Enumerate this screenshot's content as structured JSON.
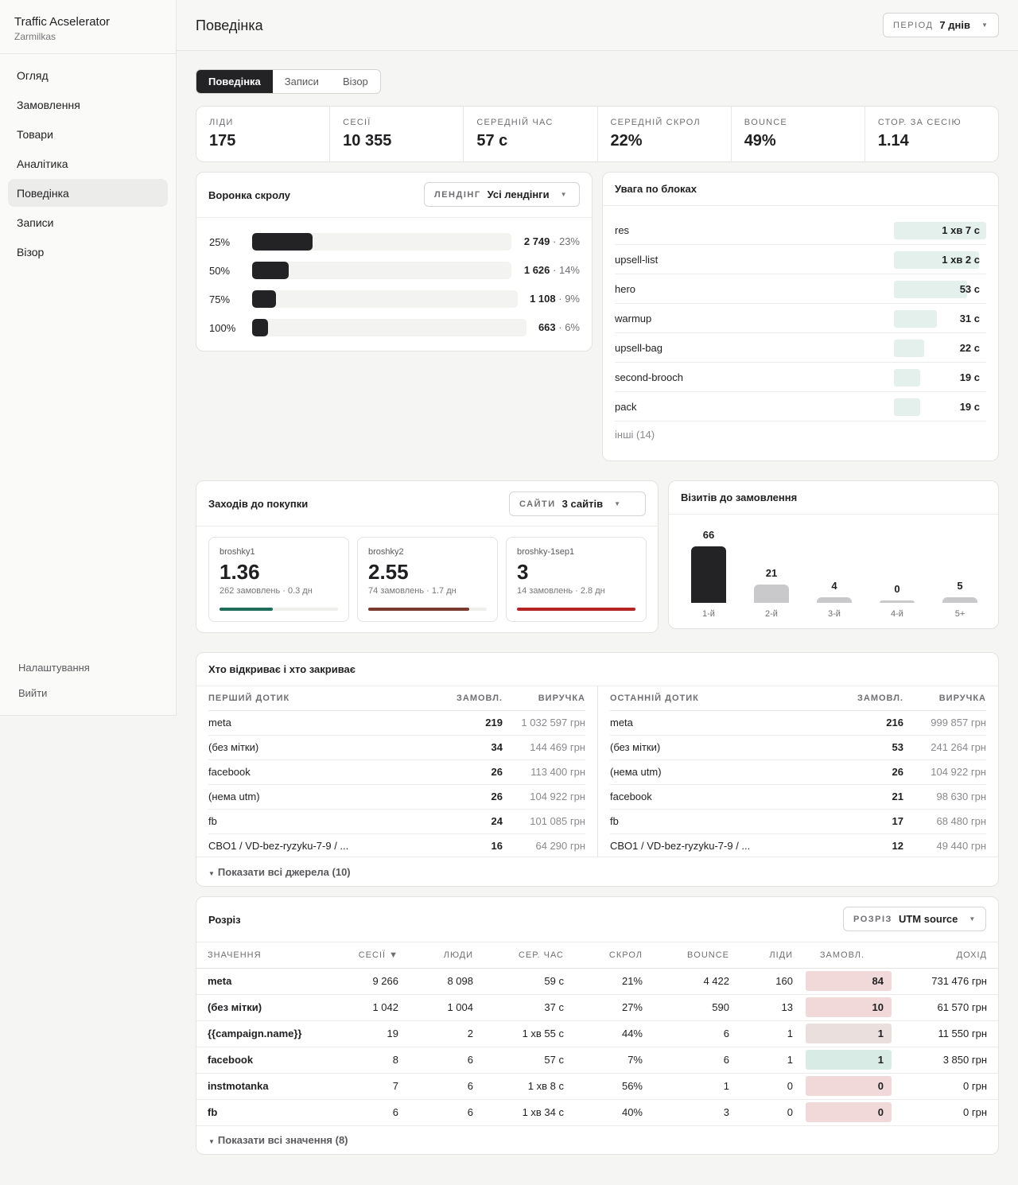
{
  "app": {
    "title": "Traffic Acselerator",
    "subtitle": "Zarmilkas"
  },
  "nav": {
    "items": [
      "Огляд",
      "Замовлення",
      "Товари",
      "Аналітика",
      "Поведінка",
      "Записи",
      "Візор"
    ],
    "active": 4
  },
  "bottom_nav": {
    "settings": "Налаштування",
    "logout": "Вийти"
  },
  "header": {
    "title": "Поведінка",
    "period_label": "Період",
    "period_value": "7 днів"
  },
  "tabs": [
    "Поведінка",
    "Записи",
    "Візор"
  ],
  "kpis": [
    {
      "label": "Ліди",
      "value": "175"
    },
    {
      "label": "Сесії",
      "value": "10 355"
    },
    {
      "label": "Середній час",
      "value": "57 с"
    },
    {
      "label": "Середній скрол",
      "value": "22%"
    },
    {
      "label": "Bounce",
      "value": "49%"
    },
    {
      "label": "Стор. за сесію",
      "value": "1.14"
    }
  ],
  "scroll_funnel": {
    "title": "Воронка скролу",
    "selector_label": "Лендінг",
    "selector_value": "Усі лендінги",
    "rows": [
      {
        "pct": "25%",
        "count": "2 749",
        "share": "· 23%",
        "fill": 0.23
      },
      {
        "pct": "50%",
        "count": "1 626",
        "share": "· 14%",
        "fill": 0.14
      },
      {
        "pct": "75%",
        "count": "1 108",
        "share": "· 9%",
        "fill": 0.09
      },
      {
        "pct": "100%",
        "count": "663",
        "share": "· 6%",
        "fill": 0.06
      }
    ]
  },
  "attention": {
    "title": "Увага по блоках",
    "rows": [
      {
        "name": "res",
        "value": "1 хв 7 с",
        "seconds": 67
      },
      {
        "name": "upsell-list",
        "value": "1 хв 2 с",
        "seconds": 62
      },
      {
        "name": "hero",
        "value": "53 с",
        "seconds": 53
      },
      {
        "name": "warmup",
        "value": "31 с",
        "seconds": 31
      },
      {
        "name": "upsell-bag",
        "value": "22 с",
        "seconds": 22
      },
      {
        "name": "second-brooch",
        "value": "19 с",
        "seconds": 19
      },
      {
        "name": "pack",
        "value": "19 с",
        "seconds": 19
      }
    ],
    "more": "інші (14)"
  },
  "visits_to_purchase": {
    "title": "Заходів до покупки",
    "selector_label": "Сайти",
    "selector_value": "3 сайтів",
    "sites": [
      {
        "name": "broshky1",
        "value": "1.36",
        "sub": "262 замовлень · 0.3 дн",
        "color": "#1f6b5c",
        "fill": 0.45
      },
      {
        "name": "broshky2",
        "value": "2.55",
        "sub": "74 замовлень · 1.7 дн",
        "color": "#7a3a2e",
        "fill": 0.85
      },
      {
        "name": "broshky-1sep1",
        "value": "3",
        "sub": "14 замовлень · 2.8 дн",
        "color": "#b42424",
        "fill": 1.0
      }
    ]
  },
  "chart_data": {
    "type": "bar",
    "title": "Візитів до замовлення",
    "categories": [
      "1-й",
      "2-й",
      "3-й",
      "4-й",
      "5+"
    ],
    "values": [
      66,
      21,
      4,
      0,
      5
    ],
    "colors": [
      "#232325",
      "#c9c9cb",
      "#c9c9cb",
      "#c9c9cb",
      "#c9c9cb"
    ]
  },
  "touch": {
    "title": "Хто відкриває і хто закриває",
    "first": {
      "headers": [
        "Перший дотик",
        "Замовл.",
        "Виручка"
      ],
      "rows": [
        [
          "meta",
          "219",
          "1 032 597 грн"
        ],
        [
          "(без мітки)",
          "34",
          "144 469 грн"
        ],
        [
          "facebook",
          "26",
          "113 400 грн"
        ],
        [
          "(нема utm)",
          "26",
          "104 922 грн"
        ],
        [
          "fb",
          "24",
          "101 085 грн"
        ],
        [
          "CBO1 / VD-bez-ryzyku-7-9 / ...",
          "16",
          "64 290 грн"
        ]
      ]
    },
    "last": {
      "headers": [
        "Останній дотик",
        "Замовл.",
        "Виручка"
      ],
      "rows": [
        [
          "meta",
          "216",
          "999 857 грн"
        ],
        [
          "(без мітки)",
          "53",
          "241 264 грн"
        ],
        [
          "(нема utm)",
          "26",
          "104 922 грн"
        ],
        [
          "facebook",
          "21",
          "98 630 грн"
        ],
        [
          "fb",
          "17",
          "68 480 грн"
        ],
        [
          "CBO1 / VD-bez-ryzyku-7-9 / ...",
          "12",
          "49 440 грн"
        ]
      ]
    },
    "more": "Показати всі джерела (10)"
  },
  "breakdown": {
    "title": "Розріз",
    "selector_label": "Розріз",
    "selector_value": "UTM source",
    "headers": [
      "Значення",
      "Сесії ▼",
      "Люди",
      "Сер. час",
      "Скрол",
      "Bounce",
      "Ліди",
      "Замовл.",
      "Дохід"
    ],
    "rows": [
      [
        "meta",
        "9 266",
        "8 098",
        "59 с",
        "21%",
        "4 422",
        "160",
        "84",
        "731 476 грн"
      ],
      [
        "(без мітки)",
        "1 042",
        "1 004",
        "37 с",
        "27%",
        "590",
        "13",
        "10",
        "61 570 грн"
      ],
      [
        "{{campaign.name}}",
        "19",
        "2",
        "1 хв 55 с",
        "44%",
        "6",
        "1",
        "1",
        "11 550 грн"
      ],
      [
        "facebook",
        "8",
        "6",
        "57 с",
        "7%",
        "6",
        "1",
        "1",
        "3 850 грн"
      ],
      [
        "instmotanka",
        "7",
        "6",
        "1 хв 8 с",
        "56%",
        "1",
        "0",
        "0",
        "0 грн"
      ],
      [
        "fb",
        "6",
        "6",
        "1 хв 34 с",
        "40%",
        "3",
        "0",
        "0",
        "0 грн"
      ]
    ],
    "order_colors": [
      "#f2d9d9",
      "#f2d9d9",
      "#eadfdd",
      "#d9ebe5",
      "#f2d9d9",
      "#f2d9d9"
    ],
    "more": "Показати всі значення (8)"
  }
}
